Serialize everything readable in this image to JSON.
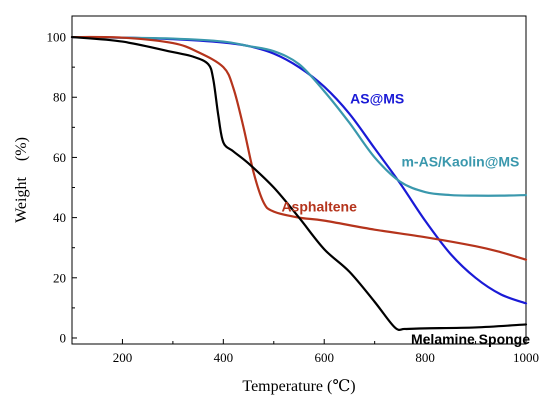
{
  "chart_data": {
    "type": "line",
    "xlabel": "Temperature (℃)",
    "ylabel": "Weight　(%)",
    "xlim": [
      100,
      1000
    ],
    "ylim": [
      -2,
      107
    ],
    "xticks": [
      200,
      400,
      600,
      800,
      1000
    ],
    "yticks": [
      0,
      20,
      40,
      60,
      80,
      100
    ],
    "grid": false,
    "legend": "none",
    "series": [
      {
        "name": "AS@MS",
        "color": "#1a1ad6",
        "label_at": [
          705,
          78
        ],
        "x": [
          100,
          200,
          300,
          400,
          450,
          500,
          550,
          600,
          650,
          700,
          750,
          800,
          850,
          900,
          950,
          1000
        ],
        "y": [
          100,
          99.8,
          99.3,
          98.2,
          97,
          94.5,
          90,
          83.5,
          74.5,
          63,
          51.5,
          39,
          28,
          20,
          14.5,
          11.5
        ]
      },
      {
        "name": "m-AS/Kaolin@MS",
        "color": "#3a98ad",
        "label_at": [
          870,
          57
        ],
        "x": [
          100,
          200,
          300,
          400,
          450,
          500,
          550,
          600,
          650,
          700,
          750,
          800,
          850,
          900,
          950,
          1000
        ],
        "y": [
          100,
          99.8,
          99.5,
          98.5,
          97,
          95.3,
          91,
          82,
          71.5,
          60,
          52,
          48.5,
          47.5,
          47.3,
          47.3,
          47.5
        ]
      },
      {
        "name": "Asphaltene",
        "color": "#b5341c",
        "label_at": [
          590,
          42
        ],
        "x": [
          100,
          200,
          300,
          350,
          400,
          420,
          440,
          460,
          480,
          500,
          550,
          600,
          700,
          800,
          900,
          950,
          1000
        ],
        "y": [
          100,
          99.8,
          98,
          95,
          90,
          83,
          70,
          55,
          45,
          42,
          40,
          39,
          36,
          33.5,
          30.5,
          28.5,
          26
        ]
      },
      {
        "name": "Melamine Sponge",
        "color": "#000000",
        "label_at": [
          890,
          -2
        ],
        "x": [
          100,
          200,
          300,
          340,
          370,
          380,
          390,
          400,
          420,
          450,
          500,
          550,
          600,
          650,
          700,
          740,
          760,
          800,
          900,
          1000
        ],
        "y": [
          100,
          98.5,
          95,
          93.5,
          91,
          86,
          74,
          65,
          62,
          58,
          50,
          40,
          29.5,
          22,
          12,
          3.5,
          3,
          3.2,
          3.5,
          4.5
        ]
      }
    ]
  }
}
